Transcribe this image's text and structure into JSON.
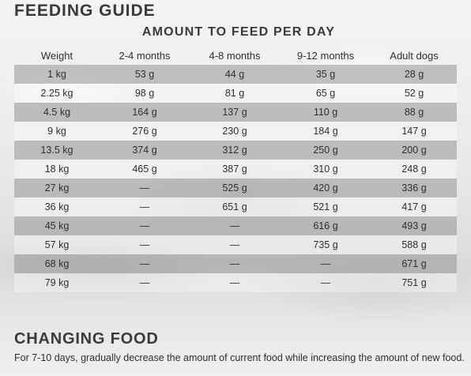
{
  "title": "FEEDING GUIDE",
  "subtitle": "AMOUNT TO FEED PER DAY",
  "table": {
    "headers": [
      "Weight",
      "2-4 months",
      "4-8 months",
      "9-12 months",
      "Adult dogs"
    ],
    "rows": [
      [
        "1 kg",
        "53 g",
        "44 g",
        "35 g",
        "28 g"
      ],
      [
        "2.25 kg",
        "98 g",
        "81 g",
        "65 g",
        "52 g"
      ],
      [
        "4.5 kg",
        "164 g",
        "137 g",
        "110 g",
        "88 g"
      ],
      [
        "9 kg",
        "276 g",
        "230 g",
        "184 g",
        "147 g"
      ],
      [
        "13.5 kg",
        "374 g",
        "312 g",
        "250 g",
        "200 g"
      ],
      [
        "18 kg",
        "465 g",
        "387 g",
        "310 g",
        "248 g"
      ],
      [
        "27 kg",
        "—",
        "525 g",
        "420 g",
        "336 g"
      ],
      [
        "36 kg",
        "—",
        "651 g",
        "521 g",
        "417 g"
      ],
      [
        "45 kg",
        "—",
        "—",
        "616 g",
        "493 g"
      ],
      [
        "57 kg",
        "—",
        "—",
        "735 g",
        "588 g"
      ],
      [
        "68 kg",
        "—",
        "—",
        "—",
        "671 g"
      ],
      [
        "79 kg",
        "—",
        "—",
        "—",
        "751 g"
      ]
    ]
  },
  "changing": {
    "title": "CHANGING FOOD",
    "text": "For 7-10 days, gradually decrease the amount of current food while increasing the amount of new food."
  }
}
